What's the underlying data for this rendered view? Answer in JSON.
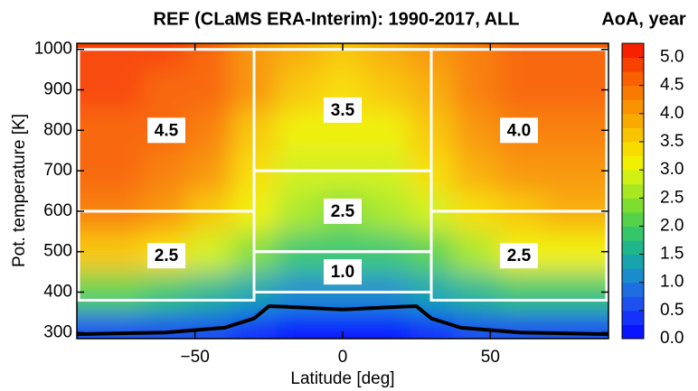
{
  "chart_data": {
    "type": "contour",
    "title": "REF (CLaMS ERA-Interim): 1990-2017, ALL",
    "x_label": "Latitude [deg]",
    "y_label": "Pot. temperature [K]",
    "colorbar_label": "AoA, year",
    "xlim": [
      -90,
      90
    ],
    "xticks": [
      {
        "value": -50,
        "label": "−50"
      },
      0,
      50
    ],
    "ylim": [
      285,
      1015
    ],
    "yticks": [
      300,
      400,
      500,
      600,
      700,
      800,
      900,
      1000
    ],
    "clim": [
      0,
      5.25
    ],
    "cticks": [
      {
        "value": 0,
        "label": "0.0"
      },
      0.5,
      {
        "value": 1,
        "label": "1.0"
      },
      1.5,
      {
        "value": 2,
        "label": "2.0"
      },
      2.5,
      {
        "value": 3,
        "label": "3.0"
      },
      3.5,
      {
        "value": 4,
        "label": "4.0"
      },
      4.5,
      {
        "value": 5,
        "label": "5.0"
      }
    ],
    "colormap": [
      "#0a14ff",
      "#1432fa",
      "#1e50f0",
      "#1e6ee2",
      "#1a8ccc",
      "#18a4ac",
      "#20b68c",
      "#36c66a",
      "#56d24a",
      "#7ede30",
      "#a8e820",
      "#d0f014",
      "#f0f000",
      "#f8dc00",
      "#f8c400",
      "#f8aa00",
      "#f89200",
      "#f87a00",
      "#f86000",
      "#f84000",
      "#f82000"
    ],
    "lat": [
      -90,
      -75,
      -60,
      -45,
      -30,
      -15,
      0,
      15,
      30,
      45,
      60,
      75,
      90
    ],
    "theta": [
      300,
      400,
      500,
      600,
      700,
      800,
      900,
      1000
    ],
    "z": [
      [
        0.6,
        0.6,
        0.6,
        0.5,
        0.3,
        0.2,
        0.2,
        0.2,
        0.3,
        0.5,
        0.5,
        0.6,
        0.6
      ],
      [
        2.0,
        2.0,
        1.9,
        1.7,
        1.3,
        1.1,
        1.0,
        1.1,
        1.3,
        1.6,
        1.8,
        1.9,
        1.9
      ],
      [
        3.6,
        3.5,
        3.3,
        2.9,
        2.3,
        1.9,
        1.8,
        1.9,
        2.2,
        2.7,
        3.0,
        3.1,
        3.1
      ],
      [
        4.4,
        4.3,
        4.1,
        3.7,
        3.0,
        2.5,
        2.4,
        2.5,
        2.9,
        3.4,
        3.7,
        3.8,
        3.8
      ],
      [
        4.6,
        4.5,
        4.4,
        4.1,
        3.4,
        2.9,
        2.8,
        2.9,
        3.3,
        3.8,
        4.0,
        4.1,
        4.1
      ],
      [
        4.7,
        4.7,
        4.6,
        4.3,
        3.7,
        3.2,
        3.1,
        3.2,
        3.6,
        4.1,
        4.3,
        4.3,
        4.3
      ],
      [
        4.8,
        4.8,
        4.7,
        4.5,
        4.0,
        3.5,
        3.4,
        3.5,
        3.9,
        4.3,
        4.5,
        4.5,
        4.5
      ],
      [
        4.9,
        4.9,
        4.8,
        4.6,
        4.2,
        3.8,
        3.7,
        3.8,
        4.1,
        4.4,
        4.6,
        4.6,
        4.6
      ]
    ],
    "tropopause": {
      "color": "#000000",
      "x": [
        -90,
        -60,
        -40,
        -30,
        -25,
        -20,
        0,
        20,
        25,
        30,
        40,
        60,
        90
      ],
      "values": [
        296,
        300,
        312,
        335,
        365,
        364,
        357,
        364,
        365,
        335,
        312,
        300,
        296
      ]
    },
    "regions": [
      {
        "lat": [
          -90,
          -30
        ],
        "theta": [
          600,
          1000
        ],
        "value": 4.5
      },
      {
        "lat": [
          -30,
          30
        ],
        "theta": [
          700,
          1000
        ],
        "value": 3.5
      },
      {
        "lat": [
          30,
          90
        ],
        "theta": [
          600,
          1000
        ],
        "value": 4.0,
        "value_label": "4.0"
      },
      {
        "lat": [
          -90,
          -30
        ],
        "theta": [
          380,
          600
        ],
        "value": 2.5
      },
      {
        "lat": [
          -30,
          30
        ],
        "theta": [
          500,
          700
        ],
        "value": 2.5
      },
      {
        "lat": [
          -30,
          30
        ],
        "theta": [
          400,
          500
        ],
        "value": 1.0,
        "value_label": "1.0"
      },
      {
        "lat": [
          30,
          90
        ],
        "theta": [
          380,
          600
        ],
        "value": 2.5
      }
    ]
  }
}
